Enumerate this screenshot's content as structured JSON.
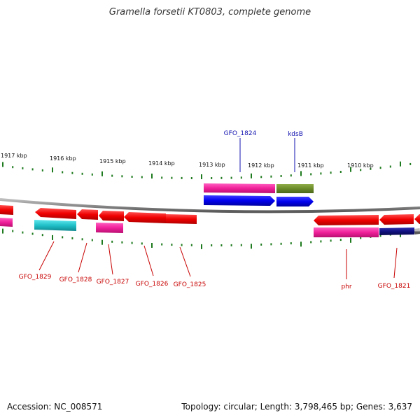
{
  "title": "Gramella forsetii KT0803, complete genome",
  "footer": {
    "accession": "Accession: NC_008571",
    "summary": "Topology: circular; Length: 3,798,465 bp; Genes: 3,637"
  },
  "colors": {
    "backbone": "#8c8c8c",
    "tick": "#1e7a1e",
    "forward_label": "#1010b0",
    "reverse_label": "#c80000",
    "protein_reverse": "#f00000",
    "protein_forward": "#0000f0",
    "pink": "#f0209a",
    "olive": "#6b8a2a",
    "cyan": "#20c0c8",
    "navy": "#101080"
  },
  "scale_labels": [
    "1917 kbp",
    "1916 kbp",
    "1915 kbp",
    "1914 kbp",
    "1913 kbp",
    "1912 kbp",
    "1911 kbp",
    "1910 kbp"
  ],
  "top_genes": [
    {
      "label": "GFO_1824",
      "color": "#1010b0"
    },
    {
      "label": "kdsB",
      "color": "#1010b0"
    }
  ],
  "bottom_genes": [
    {
      "label": "GFO_1829"
    },
    {
      "label": "GFO_1828"
    },
    {
      "label": "GFO_1827"
    },
    {
      "label": "GFO_1826"
    },
    {
      "label": "GFO_1825"
    },
    {
      "label": "phr"
    },
    {
      "label": "GFO_1821"
    }
  ]
}
